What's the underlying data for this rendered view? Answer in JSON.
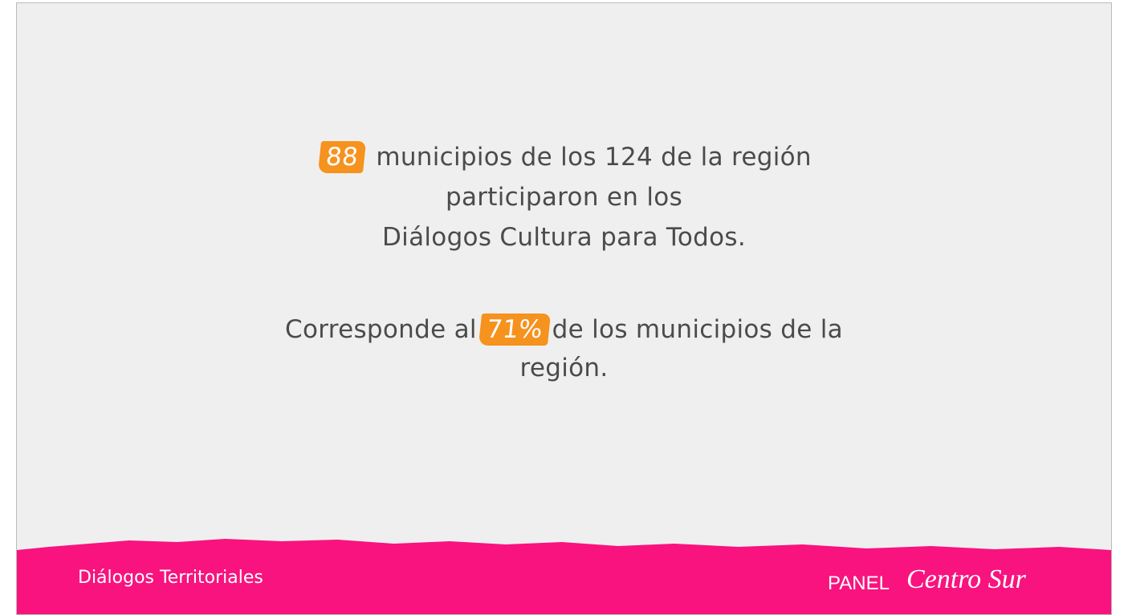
{
  "slide": {
    "line1": {
      "highlight": "88",
      "text": "municipios de los 124 de la región"
    },
    "line2": "participaron en los",
    "line3": "Diálogos Cultura para Todos.",
    "line4": {
      "before": "Corresponde al",
      "highlight": "71%",
      "after": "de los municipios de la"
    },
    "line5": "región.",
    "footer": {
      "left": "Diálogos Territoriales",
      "panel": "PANEL",
      "panel_name": "Centro Sur"
    }
  }
}
